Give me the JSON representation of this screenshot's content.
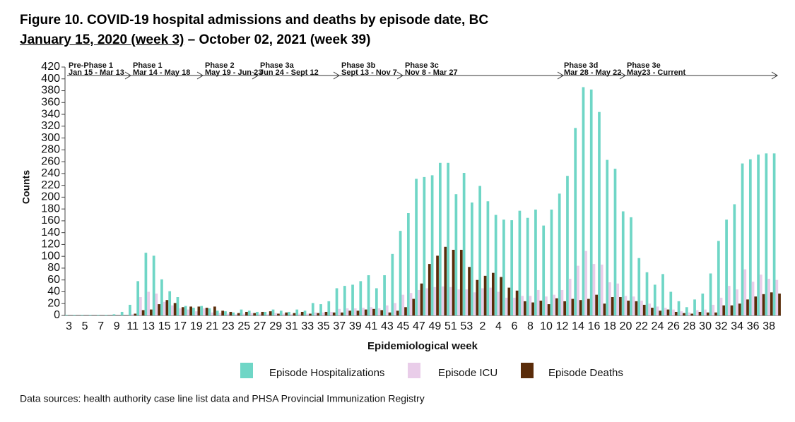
{
  "chart_data": {
    "type": "bar",
    "title": "Figure 10. COVID-19 hospital admissions and deaths by episode date, BC",
    "subtitle_underlined": "January 15, 2020 (week 3)",
    "subtitle_rest": " – October 02, 2021 (week 39)",
    "xlabel": "Epidemiological week",
    "ylabel": "Counts",
    "note": "Data sources: health authority case line list data and PHSA Provincial Immunization Registry",
    "phases": [
      {
        "name": "Pre-Phase 1",
        "dates": "Jan 15 - Mar 13"
      },
      {
        "name": "Phase 1",
        "dates": "Mar 14 - May 18"
      },
      {
        "name": "Phase 2",
        "dates": "May 19 - Jun 23"
      },
      {
        "name": "Phase 3a",
        "dates": "Jun 24 - Sept 12"
      },
      {
        "name": "Phase 3b",
        "dates": "Sept 13 - Nov 7"
      },
      {
        "name": "Phase 3c",
        "dates": "Nov 8 - Mar 27"
      },
      {
        "name": "Phase 3d",
        "dates": "Mar 28 - May 22"
      },
      {
        "name": "Phase 3e",
        "dates": "May23 - Current"
      }
    ],
    "categories": [
      "3",
      null,
      "5",
      null,
      "7",
      null,
      "9",
      null,
      "11",
      null,
      "13",
      null,
      "15",
      null,
      "17",
      null,
      "19",
      null,
      "21",
      null,
      "23",
      null,
      "25",
      null,
      "27",
      null,
      "29",
      null,
      "31",
      null,
      "33",
      null,
      "35",
      null,
      "37",
      null,
      "39",
      null,
      "41",
      null,
      "43",
      null,
      "45",
      null,
      "47",
      null,
      "49",
      null,
      "51",
      null,
      "53",
      null,
      "2",
      null,
      "4",
      null,
      "6",
      null,
      "8",
      null,
      "10",
      null,
      "12",
      null,
      "14",
      null,
      "16",
      null,
      "18",
      null,
      "20",
      null,
      "22",
      null,
      "24",
      null,
      "26",
      null,
      "28",
      null,
      "30",
      null,
      "32",
      null,
      "34",
      null,
      "36",
      null,
      "38",
      null
    ],
    "series": [
      {
        "name": "Episode Hospitalizations",
        "color": "#6fd6c6",
        "values": [
          1,
          1,
          1,
          1,
          1,
          1,
          2,
          6,
          18,
          58,
          106,
          101,
          61,
          41,
          31,
          16,
          13,
          16,
          12,
          8,
          7,
          5,
          10,
          8,
          6,
          6,
          10,
          8,
          6,
          10,
          8,
          21,
          19,
          24,
          46,
          50,
          52,
          58,
          68,
          46,
          68,
          104,
          143,
          173,
          231,
          234,
          237,
          258,
          258,
          205,
          241,
          191,
          219,
          193,
          170,
          162,
          161,
          177,
          165,
          179,
          152,
          179,
          206,
          236,
          317,
          386,
          382,
          344,
          263,
          248,
          176,
          166,
          97,
          73,
          52,
          70,
          40,
          24,
          14,
          27,
          37,
          71,
          126,
          162,
          188,
          257,
          264,
          272,
          274,
          274
        ]
      },
      {
        "name": "Episode ICU",
        "color": "#e9cde9",
        "values": [
          0,
          0,
          0,
          0,
          0,
          0,
          0,
          0,
          2,
          31,
          40,
          37,
          23,
          17,
          12,
          10,
          7,
          12,
          5,
          4,
          3,
          2,
          3,
          4,
          3,
          2,
          4,
          3,
          2,
          3,
          3,
          5,
          5,
          6,
          11,
          12,
          12,
          13,
          14,
          12,
          17,
          21,
          35,
          38,
          43,
          46,
          48,
          49,
          48,
          44,
          44,
          39,
          46,
          47,
          40,
          30,
          30,
          33,
          33,
          43,
          32,
          35,
          43,
          62,
          84,
          109,
          87,
          86,
          56,
          54,
          33,
          32,
          25,
          20,
          15,
          13,
          10,
          7,
          5,
          9,
          10,
          18,
          30,
          50,
          44,
          78,
          57,
          69,
          62,
          60
        ]
      },
      {
        "name": "Episode Deaths",
        "color": "#5a2c0a",
        "values": [
          0,
          0,
          0,
          0,
          0,
          0,
          0,
          0,
          3,
          9,
          10,
          19,
          26,
          21,
          14,
          15,
          15,
          13,
          15,
          8,
          6,
          4,
          6,
          4,
          6,
          7,
          3,
          5,
          4,
          6,
          3,
          4,
          6,
          5,
          5,
          8,
          8,
          10,
          11,
          9,
          5,
          8,
          14,
          28,
          54,
          87,
          101,
          116,
          111,
          111,
          82,
          60,
          67,
          72,
          65,
          47,
          42,
          24,
          22,
          25,
          19,
          29,
          24,
          28,
          26,
          28,
          35,
          20,
          31,
          31,
          25,
          24,
          18,
          13,
          8,
          10,
          6,
          4,
          3,
          6,
          5,
          5,
          17,
          17,
          20,
          27,
          32,
          36,
          39,
          37
        ]
      }
    ],
    "ylim": [
      0,
      420
    ],
    "yticks": [
      0,
      20,
      40,
      60,
      80,
      100,
      120,
      140,
      160,
      180,
      200,
      220,
      240,
      260,
      280,
      300,
      320,
      340,
      360,
      380,
      400,
      420
    ]
  }
}
